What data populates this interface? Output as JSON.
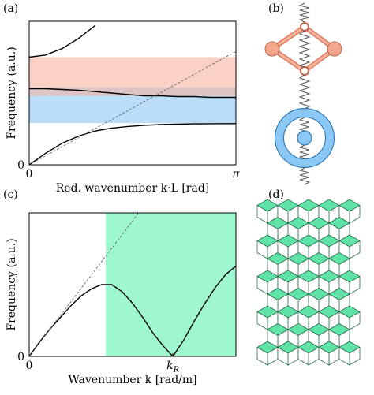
{
  "figure_labels": [
    "(a)",
    "(b)",
    "(c)",
    "(d)"
  ],
  "chart_data": [
    {
      "type": "line",
      "xlabel": "Red. wavenumber k·L [rad]",
      "ylabel": "Frequency (a.u.)",
      "xlim": [
        0,
        3.1416
      ],
      "ylim": [
        0,
        1
      ],
      "xticks": [
        0,
        {
          "value": 3.1416,
          "label": "π"
        }
      ],
      "yticks": [
        0
      ],
      "bands": [
        {
          "range": [
            0.29,
            0.54
          ],
          "color": "#8cc8f5"
        },
        {
          "range": [
            0.48,
            0.75
          ],
          "color": "#f7b29c"
        }
      ],
      "x": [
        0,
        0.25,
        0.5,
        0.75,
        1.0,
        1.25,
        1.5,
        1.75,
        2.0,
        2.25,
        2.5,
        2.75,
        3.0,
        3.1416
      ],
      "series": [
        {
          "color": "#000000",
          "values": [
            0,
            0.08,
            0.15,
            0.2,
            0.235,
            0.255,
            0.267,
            0.275,
            0.28,
            0.283,
            0.285,
            0.286,
            0.287,
            0.287
          ]
        },
        {
          "color": "#000000",
          "values": [
            0.53,
            0.53,
            0.525,
            0.52,
            0.51,
            0.5,
            0.49,
            0.48,
            0.48,
            0.475,
            0.475,
            0.47,
            0.47,
            0.47
          ]
        },
        {
          "color": "#000000",
          "values": [
            0.75,
            0.765,
            0.81,
            0.88,
            0.97,
            null,
            null,
            null,
            null,
            null,
            null,
            null,
            null,
            null
          ]
        },
        {
          "color": "#555555",
          "dashed": true,
          "values": [
            0,
            0.063,
            0.126,
            0.189,
            0.252,
            0.314,
            0.377,
            0.44,
            0.503,
            0.566,
            0.629,
            0.692,
            0.755,
            0.79
          ]
        }
      ]
    },
    {
      "type": "line",
      "xlabel": "Wavenumber k [rad/m]",
      "ylabel": "Frequency (a.u.)",
      "xlim": [
        0,
        1
      ],
      "ylim": [
        0,
        1
      ],
      "xticks": [
        0,
        {
          "value": 0.695,
          "label": "kR"
        }
      ],
      "yticks": [
        0
      ],
      "bands_x": [
        {
          "range": [
            0.37,
            1
          ],
          "color": "#9ef7cf"
        }
      ],
      "x": [
        0,
        0.05,
        0.1,
        0.15,
        0.2,
        0.25,
        0.3,
        0.35,
        0.4,
        0.45,
        0.5,
        0.55,
        0.6,
        0.65,
        0.695,
        0.75,
        0.8,
        0.85,
        0.9,
        0.95,
        1.0
      ],
      "series": [
        {
          "color": "#000000",
          "values": [
            0,
            0.1,
            0.19,
            0.27,
            0.35,
            0.42,
            0.47,
            0.5,
            0.5,
            0.45,
            0.37,
            0.27,
            0.16,
            0.07,
            0,
            0.12,
            0.25,
            0.37,
            0.48,
            0.57,
            0.63
          ]
        },
        {
          "color": "#555555",
          "dashed": true,
          "values": [
            0,
            0.094,
            0.189,
            0.283,
            0.377,
            0.472,
            0.566,
            0.66,
            0.755,
            0.849,
            0.943,
            1.04,
            null,
            null,
            null,
            null,
            null,
            null,
            null,
            null,
            null
          ]
        }
      ]
    }
  ]
}
